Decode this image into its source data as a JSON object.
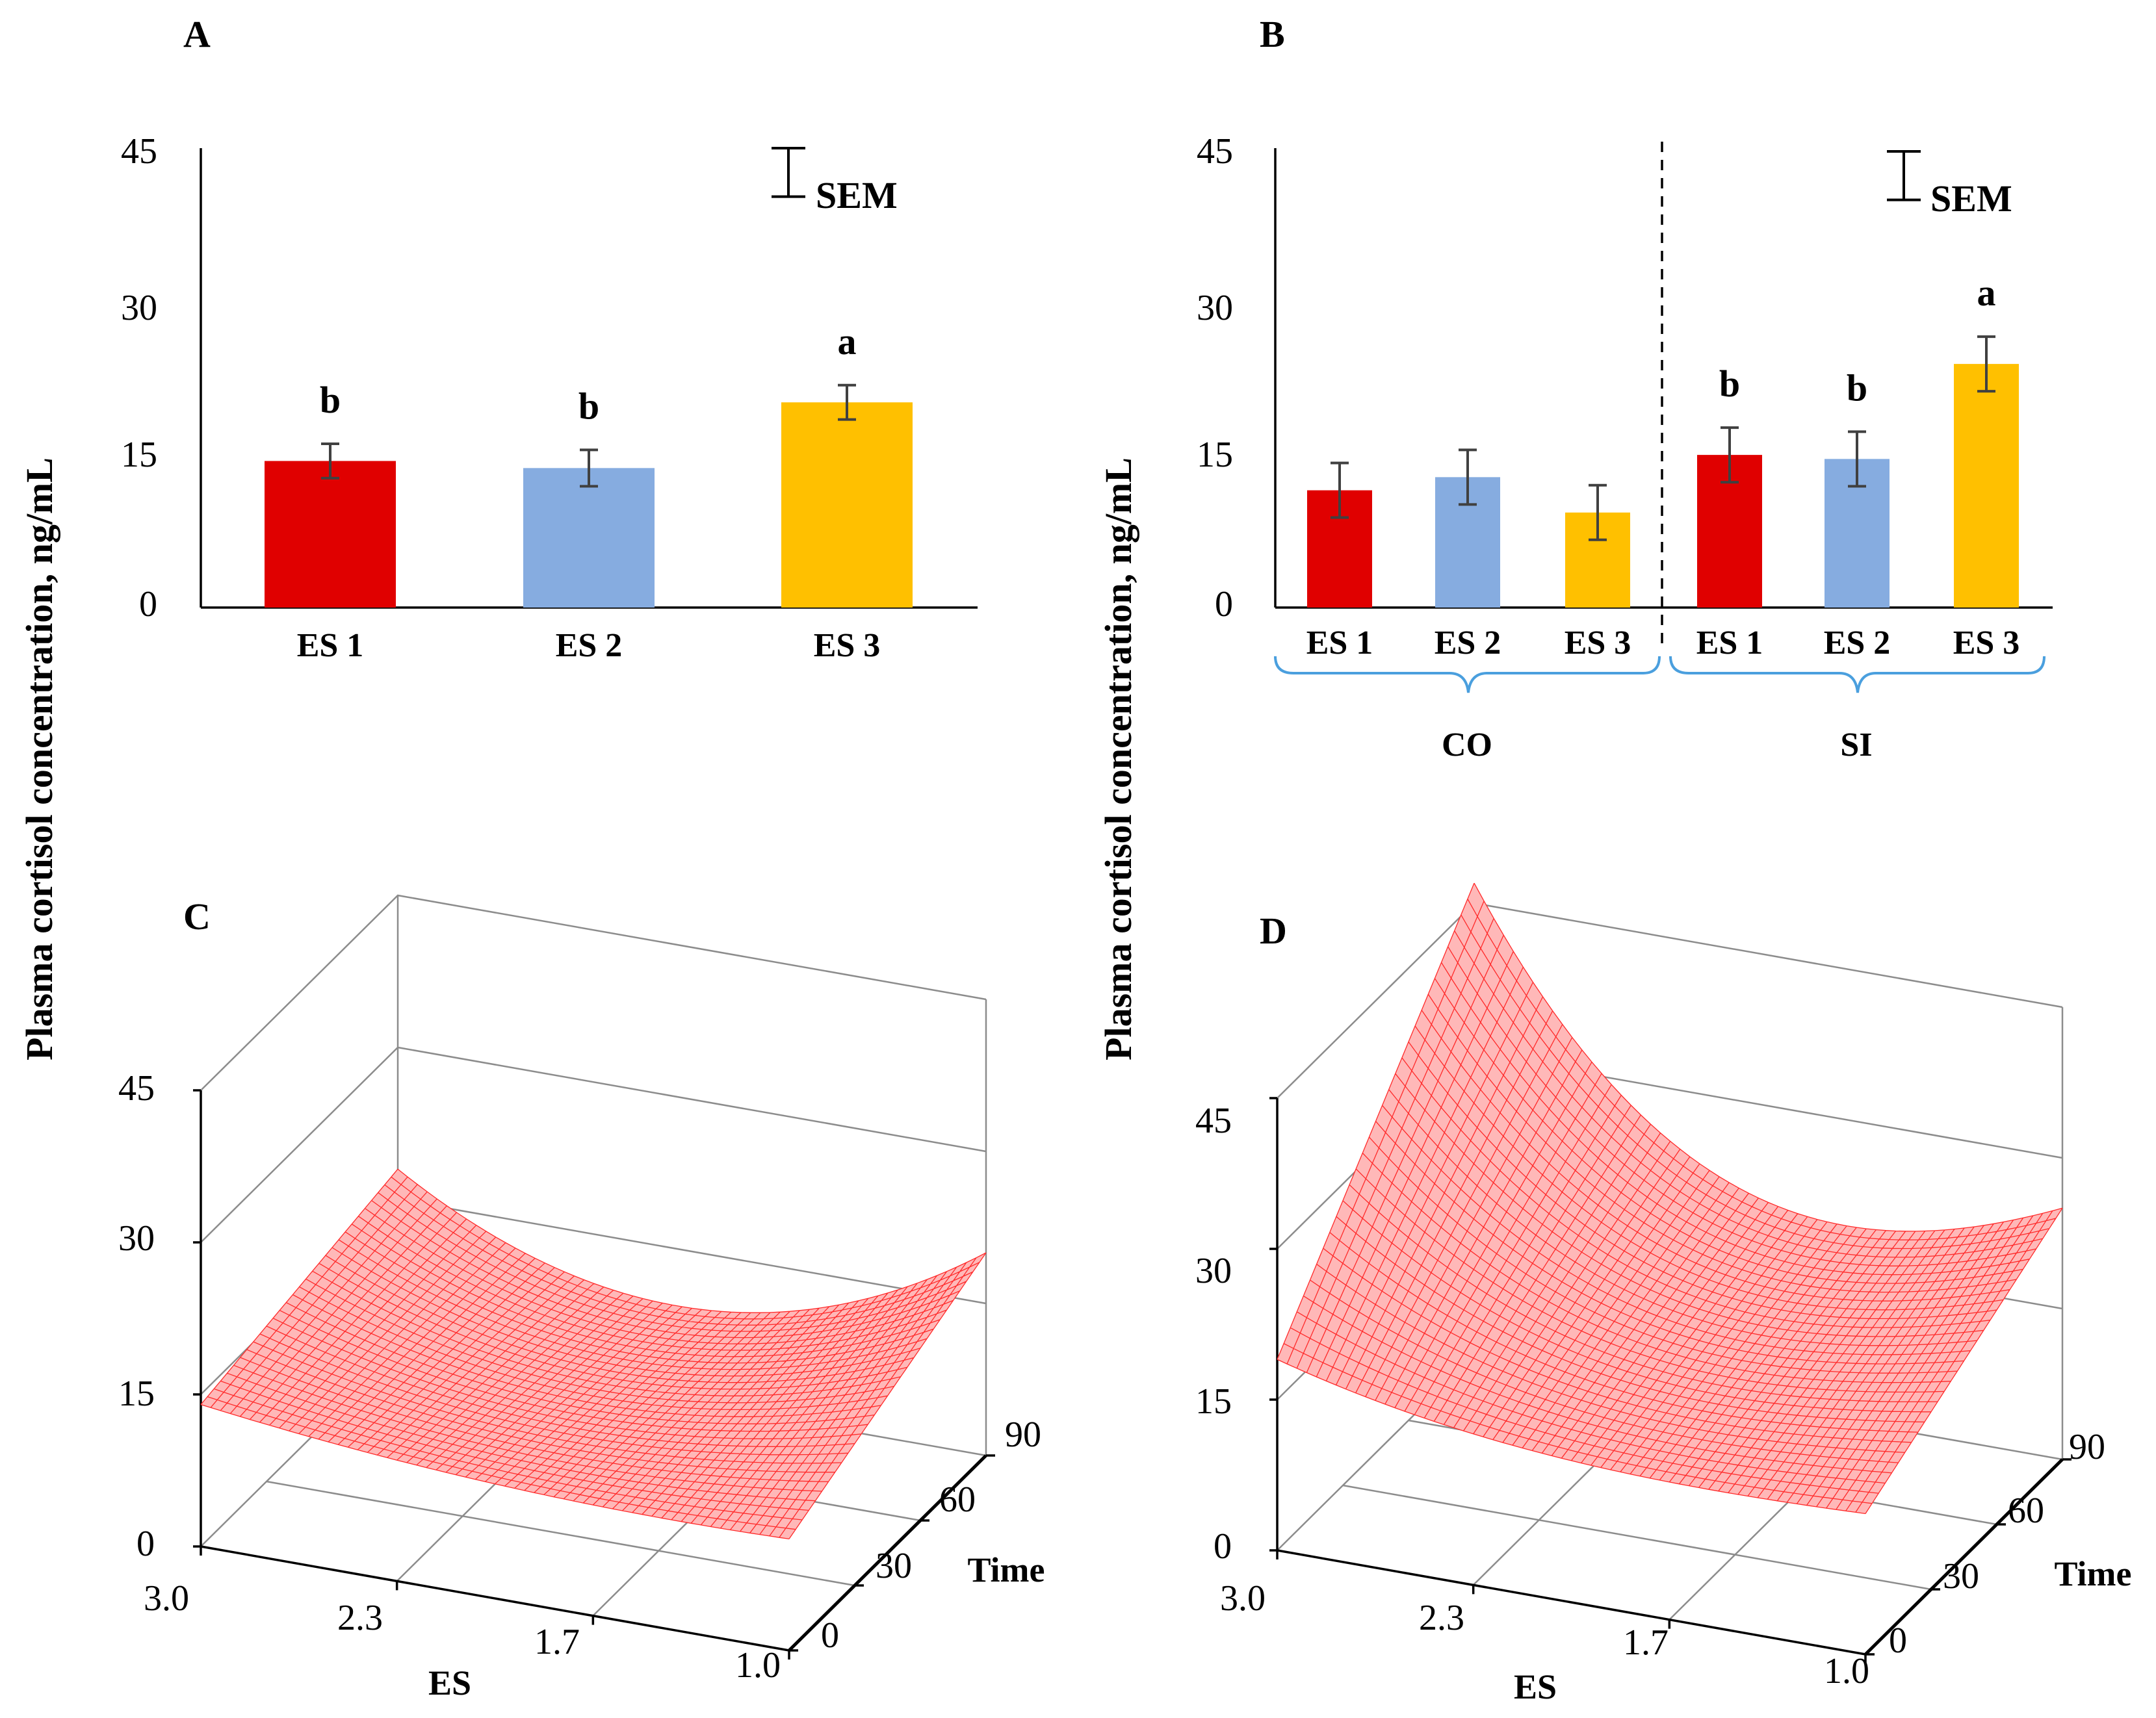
{
  "y_axis_label": "Plasma cortisol concentration, ng/mL",
  "sem_label": "SEM",
  "colors": {
    "ES 1": "#e00000",
    "ES 2": "#86ace0",
    "ES 3": "#ffc000",
    "surface": "#ff2a2a",
    "bracket": "#4a9fde"
  },
  "panels": {
    "A": {
      "label": "A"
    },
    "B": {
      "label": "B",
      "groups": [
        "CO",
        "SI"
      ]
    },
    "C": {
      "label": "C",
      "x_title": "ES",
      "time_title": "Time"
    },
    "D": {
      "label": "D",
      "x_title": "ES",
      "time_title": "Time"
    }
  },
  "chart_data": [
    {
      "panel": "A",
      "type": "bar",
      "title": "",
      "ylabel": "Plasma cortisol concentration, ng/mL",
      "ylim": [
        0,
        45
      ],
      "yticks": [
        "0",
        "15",
        "30",
        "45"
      ],
      "categories": [
        "ES 1",
        "ES 2",
        "ES 3"
      ],
      "values": [
        14.5,
        13.8,
        20.3
      ],
      "errors": [
        1.7,
        1.8,
        1.7
      ],
      "significance": [
        "b",
        "b",
        "a"
      ],
      "sem_bar": 4.8
    },
    {
      "panel": "B",
      "type": "bar",
      "title": "",
      "ylabel": "Plasma cortisol concentration, ng/mL",
      "ylim": [
        0,
        45
      ],
      "yticks": [
        "0",
        "15",
        "30",
        "45"
      ],
      "categories": [
        "ES 1",
        "ES 2",
        "ES 3",
        "ES 1",
        "ES 2",
        "ES 3"
      ],
      "groups": [
        "CO",
        "CO",
        "CO",
        "SI",
        "SI",
        "SI"
      ],
      "values": [
        11.6,
        12.9,
        9.4,
        15.1,
        14.7,
        24.1
      ],
      "errors": [
        2.7,
        2.7,
        2.7,
        2.7,
        2.7,
        2.7
      ],
      "significance": [
        "",
        "",
        "",
        "b",
        "b",
        "a"
      ],
      "sem_bar": 4.8
    },
    {
      "panel": "C",
      "type": "surface",
      "title": "",
      "zlabel": "Plasma cortisol concentration, ng/mL",
      "xlabel": "ES",
      "ylabel": "Time",
      "zlim": [
        0,
        45
      ],
      "zticks": [
        "0",
        "15",
        "30",
        "45"
      ],
      "xlim": [
        3.0,
        1.0
      ],
      "xticks": [
        "3.0",
        "2.3",
        "1.7",
        "1.0"
      ],
      "ylim": [
        0,
        90
      ],
      "yticks": [
        "0",
        "30",
        "60",
        "90"
      ],
      "corners": {
        "es3_t0": 14,
        "es1_t0": 11,
        "es3_t90": 18,
        "es1_t90": 20
      },
      "trough": {
        "es": 2.0,
        "value": 10
      }
    },
    {
      "panel": "D",
      "type": "surface",
      "title": "",
      "zlabel": "Plasma cortisol concentration, ng/mL",
      "xlabel": "ES",
      "ylabel": "Time",
      "zlim": [
        0,
        45
      ],
      "zticks": [
        "0",
        "15",
        "30",
        "45"
      ],
      "xlim": [
        3.0,
        1.0
      ],
      "xticks": [
        "3.0",
        "2.3",
        "1.7",
        "1.0"
      ],
      "ylim": [
        0,
        90
      ],
      "yticks": [
        "0",
        "30",
        "60",
        "90"
      ],
      "corners": {
        "es3_t0": 19,
        "es1_t0": 14,
        "es3_t90": 47,
        "es1_t90": 25
      },
      "trough": {
        "es": 1.4,
        "value": 12
      }
    }
  ]
}
